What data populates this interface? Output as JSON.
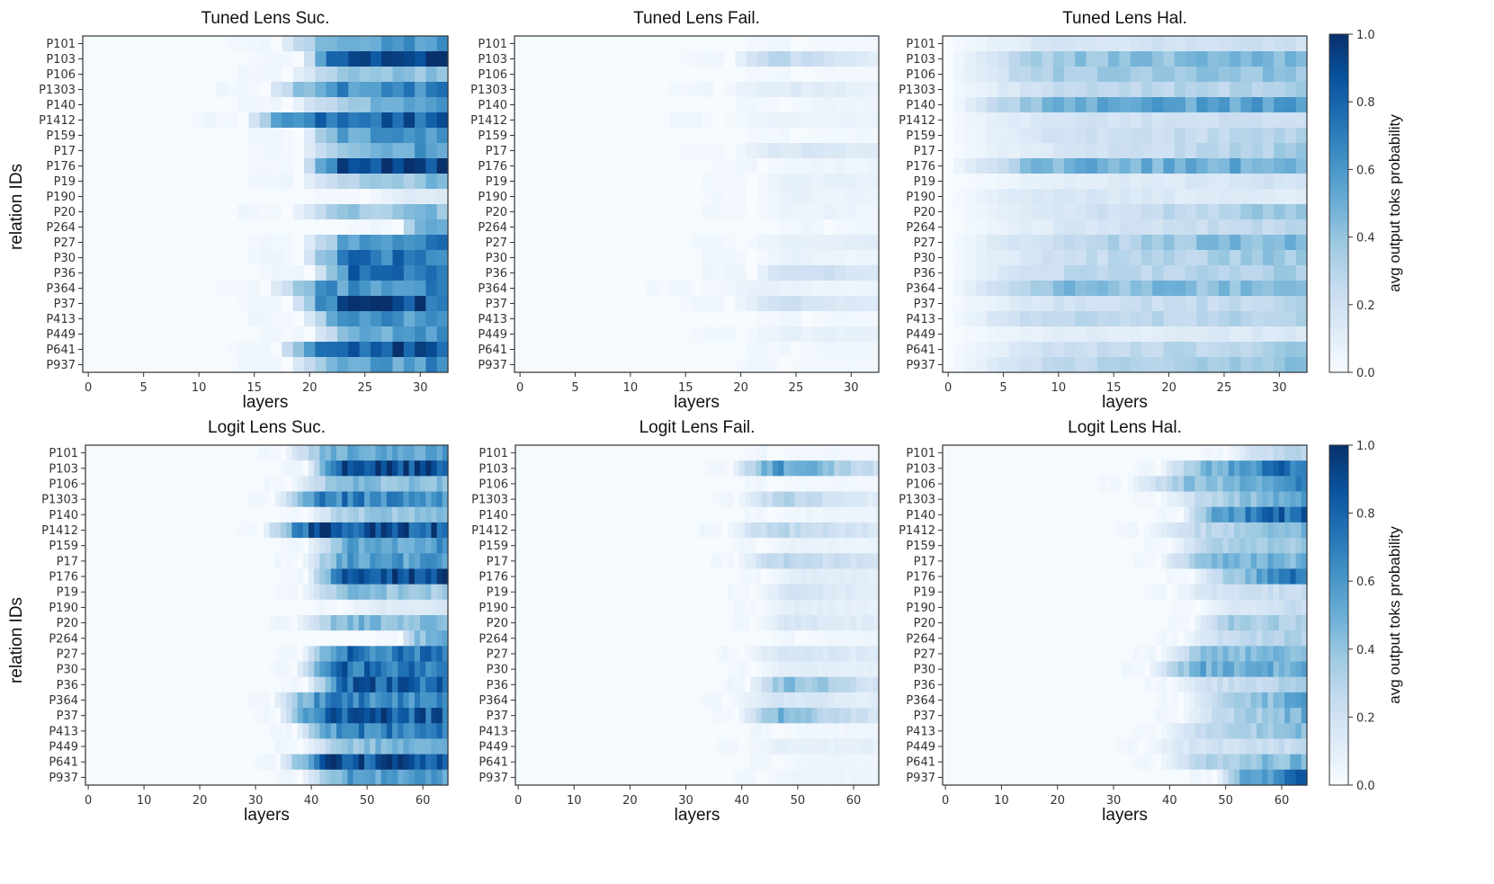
{
  "chart_data": {
    "type": "heatmap",
    "colormap": "Blues",
    "colors": {
      "low": "#f7fbff",
      "high": "#08306b",
      "axis": "#333333"
    },
    "rows": [
      "P101",
      "P103",
      "P106",
      "P1303",
      "P140",
      "P1412",
      "P159",
      "P17",
      "P176",
      "P19",
      "P190",
      "P20",
      "P264",
      "P27",
      "P30",
      "P36",
      "P364",
      "P37",
      "P413",
      "P449",
      "P641",
      "P937"
    ],
    "ylabel": "relation IDs",
    "colorbar": {
      "label": "avg output toks probability",
      "range": [
        0.0,
        1.0
      ],
      "ticks": [
        "0.0",
        "0.2",
        "0.4",
        "0.6",
        "0.8",
        "1.0"
      ]
    },
    "panels": [
      {
        "title": "Tuned Lens Suc.",
        "xlabel": "layers",
        "n_layers": 33,
        "xticks": [
          "0",
          "5",
          "10",
          "15",
          "20",
          "25",
          "30"
        ],
        "profiles": [
          {
            "start": 17,
            "peak": 0.45,
            "end": 0.6
          },
          {
            "start": 19,
            "peak": 0.9,
            "end": 0.95
          },
          {
            "start": 18,
            "peak": 0.3,
            "end": 0.45
          },
          {
            "start": 16,
            "peak": 0.6,
            "end": 0.65
          },
          {
            "start": 18,
            "peak": 0.25,
            "end": 0.6
          },
          {
            "start": 14,
            "peak": 0.8,
            "end": 0.85
          },
          {
            "start": 19,
            "peak": 0.5,
            "end": 0.7
          },
          {
            "start": 19,
            "peak": 0.4,
            "end": 0.6
          },
          {
            "start": 19,
            "peak": 0.97,
            "end": 0.95
          },
          {
            "start": 19,
            "peak": 0.25,
            "end": 0.45
          },
          {
            "start": 25,
            "peak": 0.08,
            "end": 0.15
          },
          {
            "start": 18,
            "peak": 0.3,
            "end": 0.45
          },
          {
            "start": 28,
            "peak": 0.3,
            "end": 0.6
          },
          {
            "start": 19,
            "peak": 0.45,
            "end": 0.7
          },
          {
            "start": 19,
            "peak": 0.7,
            "end": 0.75
          },
          {
            "start": 20,
            "peak": 0.75,
            "end": 0.8
          },
          {
            "start": 16,
            "peak": 0.55,
            "end": 0.65
          },
          {
            "start": 18,
            "peak": 0.85,
            "end": 0.85
          },
          {
            "start": 19,
            "peak": 0.65,
            "end": 0.55
          },
          {
            "start": 20,
            "peak": 0.45,
            "end": 0.65
          },
          {
            "start": 17,
            "peak": 0.85,
            "end": 0.85
          },
          {
            "start": 18,
            "peak": 0.45,
            "end": 0.65
          }
        ]
      },
      {
        "title": "Tuned Lens Fail.",
        "xlabel": "layers",
        "n_layers": 33,
        "xticks": [
          "0",
          "5",
          "10",
          "15",
          "20",
          "25",
          "30"
        ],
        "profiles": [
          {
            "start": 25,
            "peak": 0.02,
            "end": 0.03
          },
          {
            "start": 19,
            "peak": 0.35,
            "end": 0.1
          },
          {
            "start": 25,
            "peak": 0.02,
            "end": 0.03
          },
          {
            "start": 18,
            "peak": 0.15,
            "end": 0.08
          },
          {
            "start": 24,
            "peak": 0.05,
            "end": 0.05
          },
          {
            "start": 18,
            "peak": 0.08,
            "end": 0.05
          },
          {
            "start": 25,
            "peak": 0.03,
            "end": 0.03
          },
          {
            "start": 19,
            "peak": 0.15,
            "end": 0.15
          },
          {
            "start": 22,
            "peak": 0.05,
            "end": 0.05
          },
          {
            "start": 21,
            "peak": 0.08,
            "end": 0.08
          },
          {
            "start": 21,
            "peak": 0.08,
            "end": 0.05
          },
          {
            "start": 21,
            "peak": 0.08,
            "end": 0.05
          },
          {
            "start": 28,
            "peak": 0.03,
            "end": 0.05
          },
          {
            "start": 20,
            "peak": 0.08,
            "end": 0.1
          },
          {
            "start": 21,
            "peak": 0.08,
            "end": 0.05
          },
          {
            "start": 21,
            "peak": 0.28,
            "end": 0.12
          },
          {
            "start": 16,
            "peak": 0.08,
            "end": 0.05
          },
          {
            "start": 19,
            "peak": 0.25,
            "end": 0.1
          },
          {
            "start": 26,
            "peak": 0.03,
            "end": 0.03
          },
          {
            "start": 20,
            "peak": 0.08,
            "end": 0.08
          },
          {
            "start": 25,
            "peak": 0.04,
            "end": 0.04
          },
          {
            "start": 24,
            "peak": 0.03,
            "end": 0.03
          }
        ]
      },
      {
        "title": "Tuned Lens Hal.",
        "xlabel": "layers",
        "n_layers": 33,
        "xticks": [
          "0",
          "5",
          "10",
          "15",
          "20",
          "25",
          "30"
        ],
        "profiles": [
          {
            "start": 0,
            "peak": 0.15,
            "end": 0.2
          },
          {
            "start": 0,
            "peak": 0.35,
            "end": 0.45
          },
          {
            "start": 0,
            "peak": 0.35,
            "end": 0.4
          },
          {
            "start": 0,
            "peak": 0.2,
            "end": 0.35
          },
          {
            "start": 0,
            "peak": 0.45,
            "end": 0.6
          },
          {
            "start": 0,
            "peak": 0.15,
            "end": 0.25
          },
          {
            "start": 0,
            "peak": 0.15,
            "end": 0.3
          },
          {
            "start": 0,
            "peak": 0.08,
            "end": 0.35
          },
          {
            "start": 0,
            "peak": 0.5,
            "end": 0.5
          },
          {
            "start": 0,
            "peak": 0.05,
            "end": 0.2
          },
          {
            "start": 0,
            "peak": 0.2,
            "end": 0.1
          },
          {
            "start": 0,
            "peak": 0.05,
            "end": 0.4
          },
          {
            "start": 0,
            "peak": 0.08,
            "end": 0.3
          },
          {
            "start": 0,
            "peak": 0.15,
            "end": 0.5
          },
          {
            "start": 0,
            "peak": 0.15,
            "end": 0.4
          },
          {
            "start": 0,
            "peak": 0.2,
            "end": 0.35
          },
          {
            "start": 0,
            "peak": 0.4,
            "end": 0.45
          },
          {
            "start": 0,
            "peak": 0.15,
            "end": 0.3
          },
          {
            "start": 0,
            "peak": 0.3,
            "end": 0.3
          },
          {
            "start": 0,
            "peak": 0.08,
            "end": 0.15
          },
          {
            "start": 0,
            "peak": 0.15,
            "end": 0.35
          },
          {
            "start": 0,
            "peak": 0.2,
            "end": 0.4
          }
        ]
      },
      {
        "title": "Logit Lens Suc.",
        "xlabel": "layers",
        "n_layers": 65,
        "xticks": [
          "0",
          "10",
          "20",
          "30",
          "40",
          "50",
          "60"
        ],
        "profiles": [
          {
            "start": 35,
            "peak": 0.5,
            "end": 0.55
          },
          {
            "start": 39,
            "peak": 0.97,
            "end": 0.9
          },
          {
            "start": 36,
            "peak": 0.4,
            "end": 0.45
          },
          {
            "start": 33,
            "peak": 0.75,
            "end": 0.6
          },
          {
            "start": 39,
            "peak": 0.35,
            "end": 0.4
          },
          {
            "start": 31,
            "peak": 0.95,
            "end": 0.85
          },
          {
            "start": 39,
            "peak": 0.5,
            "end": 0.6
          },
          {
            "start": 38,
            "peak": 0.6,
            "end": 0.55
          },
          {
            "start": 39,
            "peak": 0.85,
            "end": 0.95
          },
          {
            "start": 38,
            "peak": 0.45,
            "end": 0.35
          },
          {
            "start": 45,
            "peak": 0.1,
            "end": 0.15
          },
          {
            "start": 37,
            "peak": 0.5,
            "end": 0.4
          },
          {
            "start": 56,
            "peak": 0.4,
            "end": 0.5
          },
          {
            "start": 38,
            "peak": 0.75,
            "end": 0.7
          },
          {
            "start": 37,
            "peak": 0.8,
            "end": 0.7
          },
          {
            "start": 39,
            "peak": 0.85,
            "end": 0.75
          },
          {
            "start": 33,
            "peak": 0.75,
            "end": 0.6
          },
          {
            "start": 34,
            "peak": 0.9,
            "end": 0.8
          },
          {
            "start": 37,
            "peak": 0.7,
            "end": 0.7
          },
          {
            "start": 38,
            "peak": 0.3,
            "end": 0.6
          },
          {
            "start": 34,
            "peak": 0.9,
            "end": 0.85
          },
          {
            "start": 38,
            "peak": 0.6,
            "end": 0.55
          }
        ]
      },
      {
        "title": "Logit Lens Fail.",
        "xlabel": "layers",
        "n_layers": 65,
        "xticks": [
          "0",
          "10",
          "20",
          "30",
          "40",
          "50",
          "60"
        ],
        "profiles": [
          {
            "start": 45,
            "peak": 0.03,
            "end": 0.03
          },
          {
            "start": 38,
            "peak": 0.75,
            "end": 0.2
          },
          {
            "start": 45,
            "peak": 0.03,
            "end": 0.03
          },
          {
            "start": 39,
            "peak": 0.4,
            "end": 0.1
          },
          {
            "start": 45,
            "peak": 0.05,
            "end": 0.05
          },
          {
            "start": 37,
            "peak": 0.35,
            "end": 0.15
          },
          {
            "start": 43,
            "peak": 0.08,
            "end": 0.05
          },
          {
            "start": 39,
            "peak": 0.35,
            "end": 0.15
          },
          {
            "start": 44,
            "peak": 0.12,
            "end": 0.1
          },
          {
            "start": 42,
            "peak": 0.2,
            "end": 0.1
          },
          {
            "start": 43,
            "peak": 0.12,
            "end": 0.08
          },
          {
            "start": 42,
            "peak": 0.2,
            "end": 0.1
          },
          {
            "start": 50,
            "peak": 0.03,
            "end": 0.05
          },
          {
            "start": 40,
            "peak": 0.2,
            "end": 0.12
          },
          {
            "start": 42,
            "peak": 0.12,
            "end": 0.08
          },
          {
            "start": 41,
            "peak": 0.6,
            "end": 0.15
          },
          {
            "start": 37,
            "peak": 0.2,
            "end": 0.1
          },
          {
            "start": 39,
            "peak": 0.6,
            "end": 0.15
          },
          {
            "start": 46,
            "peak": 0.04,
            "end": 0.04
          },
          {
            "start": 40,
            "peak": 0.1,
            "end": 0.08
          },
          {
            "start": 46,
            "peak": 0.05,
            "end": 0.05
          },
          {
            "start": 43,
            "peak": 0.06,
            "end": 0.05
          }
        ]
      },
      {
        "title": "Logit Lens Hal.",
        "xlabel": "layers",
        "n_layers": 65,
        "xticks": [
          "0",
          "10",
          "20",
          "30",
          "40",
          "50",
          "60"
        ],
        "profiles": [
          {
            "start": 50,
            "peak": 0.1,
            "end": 0.35
          },
          {
            "start": 38,
            "peak": 0.3,
            "end": 0.85
          },
          {
            "start": 32,
            "peak": 0.25,
            "end": 0.65
          },
          {
            "start": 38,
            "peak": 0.15,
            "end": 0.55
          },
          {
            "start": 42,
            "peak": 0.45,
            "end": 0.85
          },
          {
            "start": 35,
            "peak": 0.15,
            "end": 0.45
          },
          {
            "start": 40,
            "peak": 0.25,
            "end": 0.4
          },
          {
            "start": 38,
            "peak": 0.4,
            "end": 0.5
          },
          {
            "start": 44,
            "peak": 0.15,
            "end": 0.8
          },
          {
            "start": 40,
            "peak": 0.15,
            "end": 0.25
          },
          {
            "start": 45,
            "peak": 0.08,
            "end": 0.25
          },
          {
            "start": 44,
            "peak": 0.35,
            "end": 0.35
          },
          {
            "start": 42,
            "peak": 0.15,
            "end": 0.35
          },
          {
            "start": 38,
            "peak": 0.35,
            "end": 0.5
          },
          {
            "start": 36,
            "peak": 0.5,
            "end": 0.5
          },
          {
            "start": 40,
            "peak": 0.15,
            "end": 0.35
          },
          {
            "start": 42,
            "peak": 0.15,
            "end": 0.55
          },
          {
            "start": 42,
            "peak": 0.15,
            "end": 0.5
          },
          {
            "start": 38,
            "peak": 0.2,
            "end": 0.45
          },
          {
            "start": 35,
            "peak": 0.15,
            "end": 0.25
          },
          {
            "start": 38,
            "peak": 0.25,
            "end": 0.5
          },
          {
            "start": 48,
            "peak": 0.35,
            "end": 0.8
          }
        ]
      }
    ]
  }
}
